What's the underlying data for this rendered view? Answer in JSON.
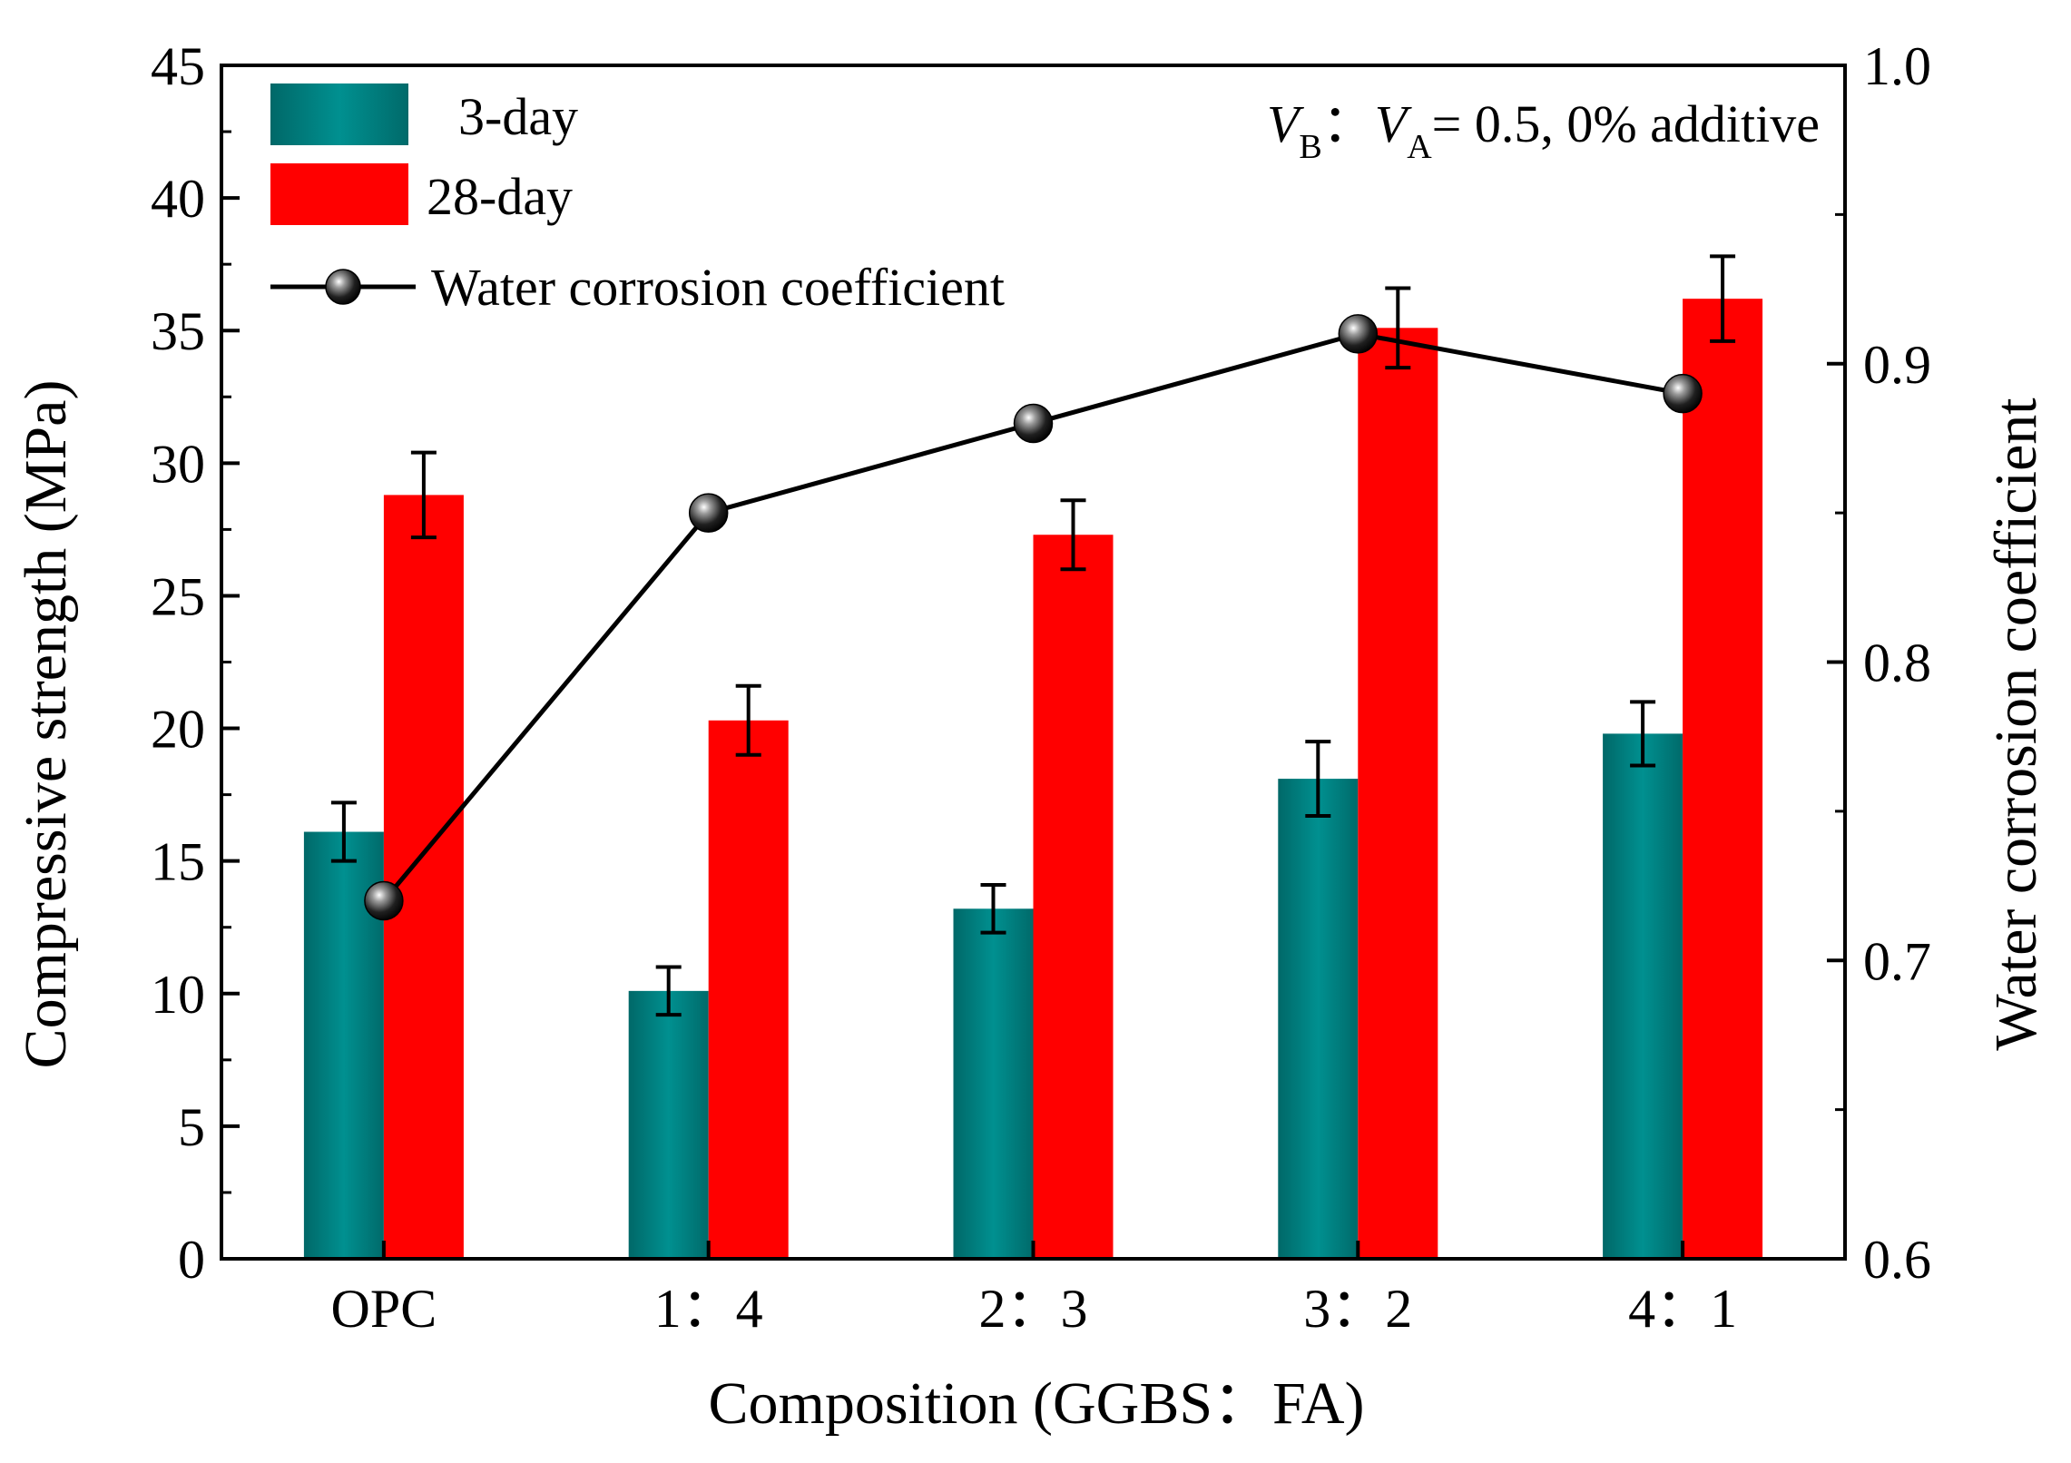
{
  "chart_data": {
    "type": "bar",
    "categories": [
      "OPC",
      "1：4",
      "2：3",
      "3：2",
      "4：1"
    ],
    "series": [
      {
        "name": "3-day",
        "axis": "left",
        "color": "#008080",
        "values": [
          16.1,
          10.1,
          13.2,
          18.1,
          19.8
        ],
        "errors": [
          1.1,
          0.9,
          0.9,
          1.4,
          1.2
        ]
      },
      {
        "name": "28-day",
        "axis": "left",
        "color": "#ff0000",
        "values": [
          28.8,
          20.3,
          27.3,
          35.1,
          36.2
        ],
        "errors": [
          1.6,
          1.3,
          1.3,
          1.5,
          1.6
        ]
      }
    ],
    "line_series": {
      "name": "Water corrosion coefficient",
      "axis": "right",
      "values": [
        0.72,
        0.85,
        0.88,
        0.91,
        0.89
      ]
    },
    "xlabel": "Composition (GGBS：FA)",
    "ylabel": "Compressive strength (MPa)",
    "ylabel_right": "Water corrosion coefficient",
    "ylim": [
      0,
      45
    ],
    "ylim_right": [
      0.6,
      1.0
    ],
    "yticks": [
      0,
      5,
      10,
      15,
      20,
      25,
      30,
      35,
      40,
      45
    ],
    "yticks_right": [
      "0.6",
      "0.7",
      "0.8",
      "0.9",
      "1.0"
    ],
    "legend_position": "top-left",
    "annotation": {
      "var_b": "V",
      "sub_b": "B",
      "sep": "：",
      "var_a": "V",
      "sub_a": "A",
      "rest": "= 0.5, 0% additive"
    }
  }
}
